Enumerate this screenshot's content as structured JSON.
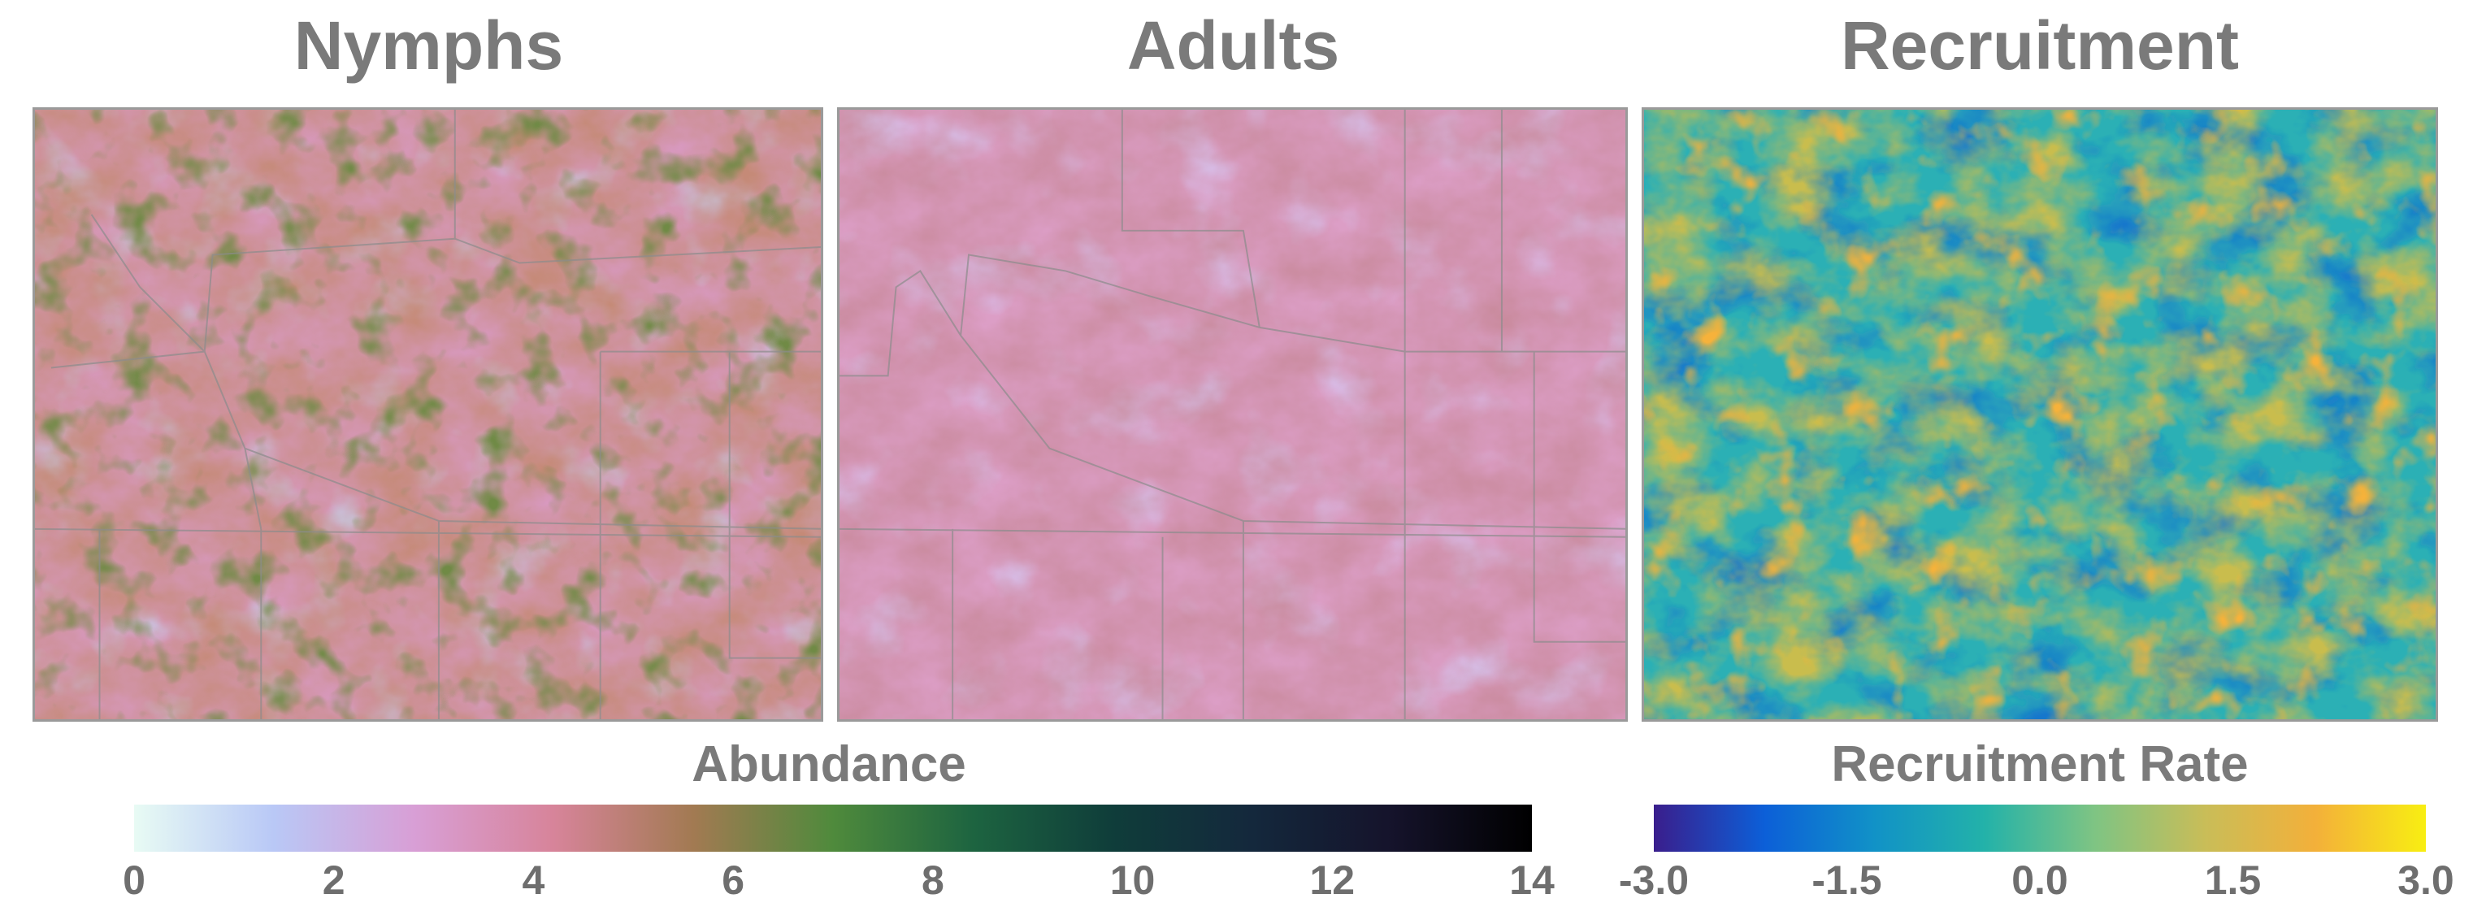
{
  "panels": {
    "nymphs": {
      "title": "Nymphs"
    },
    "adults": {
      "title": "Adults"
    },
    "recruitment": {
      "title": "Recruitment"
    }
  },
  "legends": {
    "abundance": {
      "title": "Abundance",
      "ticks": [
        "0",
        "2",
        "4",
        "6",
        "8",
        "10",
        "12",
        "14"
      ],
      "min": 0,
      "max": 14,
      "colors": [
        "#e8fbf4",
        "#b9c8f6",
        "#d89fd6",
        "#d7849a",
        "#a27a52",
        "#4f8a3c",
        "#1d6440",
        "#0f3d3a",
        "#14283c",
        "#15132b",
        "#000000"
      ]
    },
    "recruitment": {
      "title": "Recruitment Rate",
      "ticks": [
        "-3.0",
        "-1.5",
        "0.0",
        "1.5",
        "3.0"
      ],
      "min": -3,
      "max": 3,
      "colors": [
        "#3a1e8c",
        "#0c5fd8",
        "#1192c7",
        "#23b2a9",
        "#7fc483",
        "#c9bd58",
        "#f3b03a",
        "#f8ee12"
      ]
    }
  }
}
